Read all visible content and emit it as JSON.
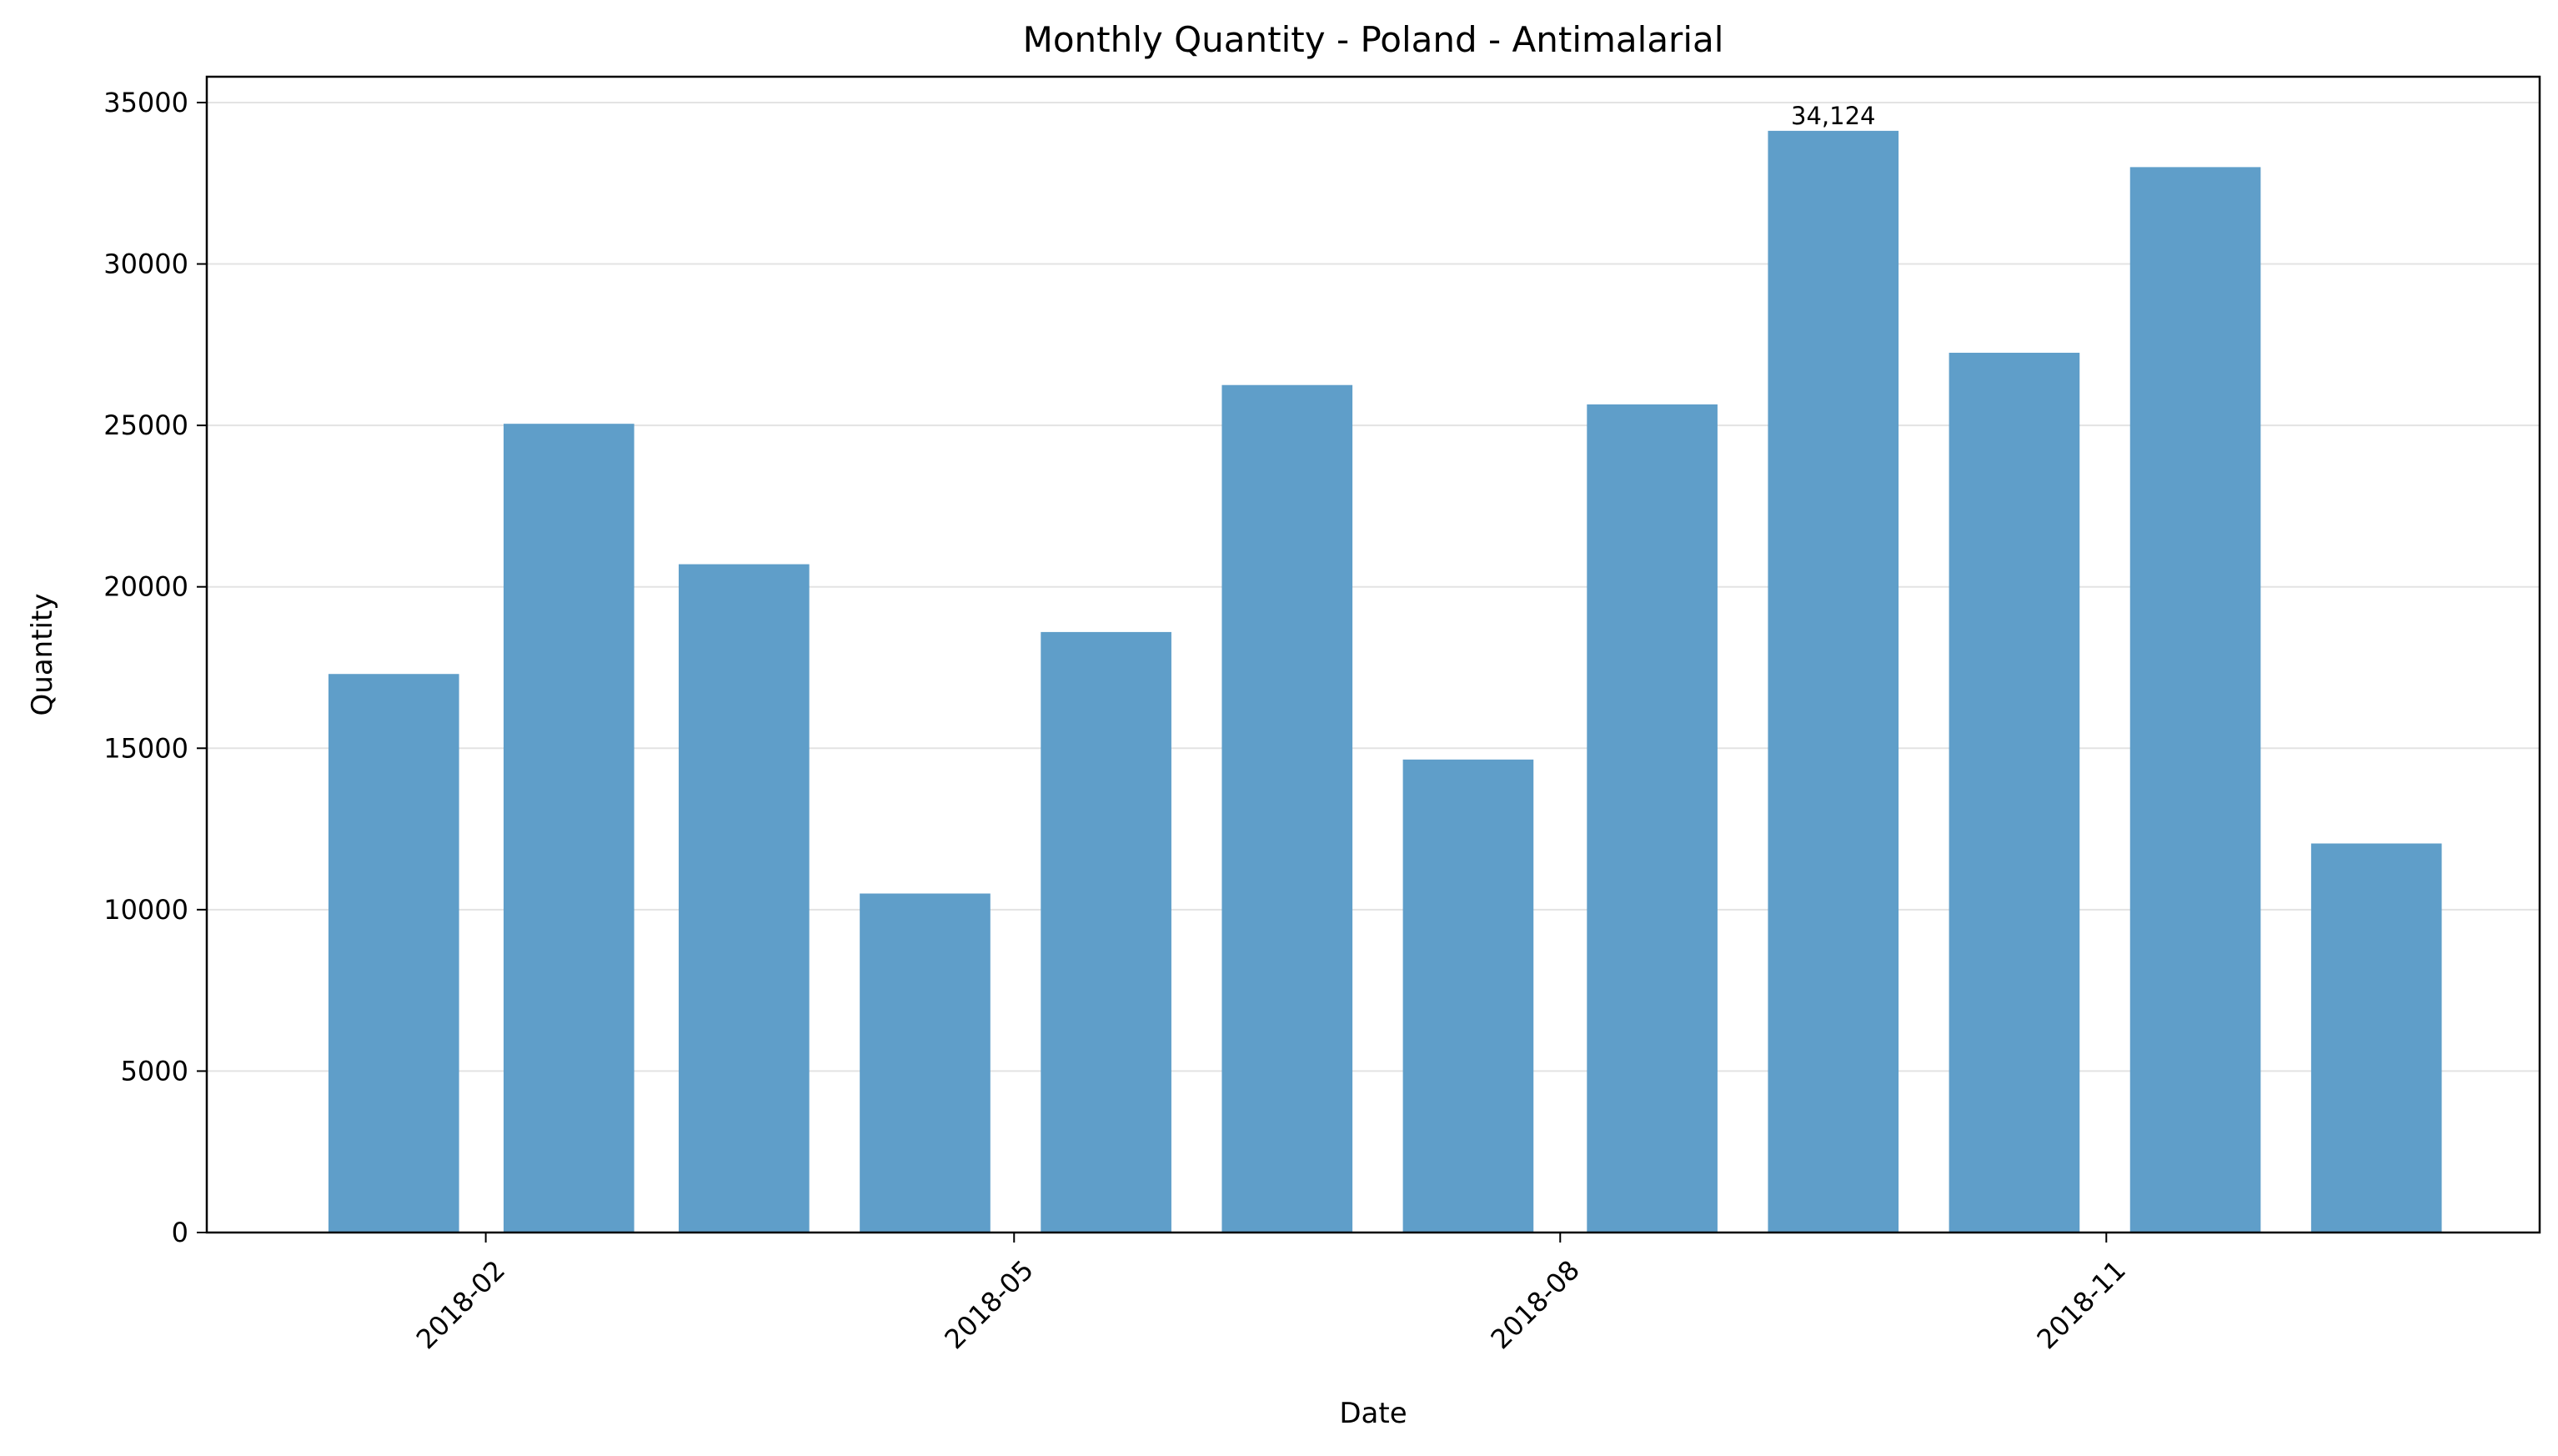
{
  "chart_data": {
    "type": "bar",
    "title": "Monthly Quantity - Poland - Antimalarial",
    "xlabel": "Date",
    "ylabel": "Quantity",
    "categories": [
      "2018-01",
      "2018-02",
      "2018-03",
      "2018-04",
      "2018-05",
      "2018-06",
      "2018-07",
      "2018-08",
      "2018-09",
      "2018-10",
      "2018-11",
      "2018-12"
    ],
    "values": [
      17300,
      25050,
      20700,
      10500,
      18600,
      26250,
      14650,
      25650,
      34124,
      27250,
      33000,
      12050
    ],
    "x_axis": {
      "type": "date",
      "range": [
        "2017-12-16",
        "2019-01-13"
      ],
      "tick_values": [
        "2018-02-01",
        "2018-05-01",
        "2018-08-01",
        "2018-11-01"
      ],
      "tick_labels": [
        "2018-02",
        "2018-05",
        "2018-08",
        "2018-11"
      ],
      "tick_rotation_deg": 45
    },
    "y_axis": {
      "ylim": [
        0,
        35800
      ],
      "ticks": [
        0,
        5000,
        10000,
        15000,
        20000,
        25000,
        30000,
        35000
      ]
    },
    "grid": {
      "x": false,
      "y": true
    },
    "bar_color": "#5f9ec9",
    "annotations": [
      {
        "category": "2018-09",
        "value": 34124,
        "text": "34,124"
      }
    ]
  }
}
